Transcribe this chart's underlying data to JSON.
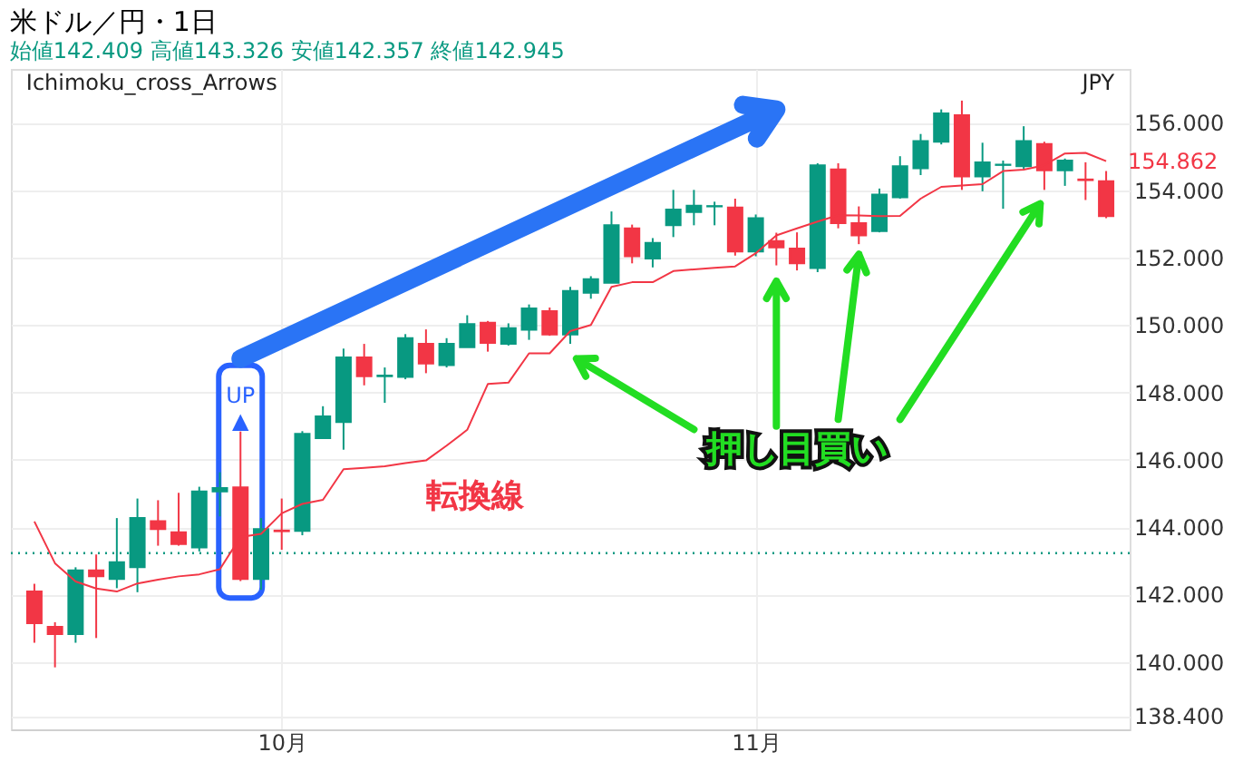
{
  "chart_data": {
    "type": "candlestick",
    "title": "米ドル／円・1日",
    "subtitle": "始値142.409 高値143.326 安値142.357 終値142.945",
    "categories": [
      null,
      null,
      null,
      null,
      null,
      null,
      null,
      null,
      null,
      null,
      null,
      null,
      "10月",
      null,
      null,
      null,
      null,
      null,
      null,
      null,
      null,
      null,
      null,
      null,
      null,
      null,
      null,
      null,
      null,
      null,
      null,
      null,
      null,
      null,
      null,
      "11月",
      null,
      null,
      null,
      null,
      null,
      null,
      null,
      null,
      null,
      null,
      null,
      null,
      null,
      null,
      null,
      null,
      null
    ],
    "ohlc": [
      [
        142.09,
        142.32,
        140.57,
        141.15
      ],
      [
        141.04,
        141.18,
        139.84,
        140.83
      ],
      [
        140.83,
        142.81,
        140.57,
        142.72
      ],
      [
        142.72,
        143.19,
        140.71,
        142.54
      ],
      [
        142.46,
        144.27,
        142.19,
        142.96
      ],
      [
        142.81,
        144.85,
        142.07,
        144.27
      ],
      [
        144.18,
        144.8,
        143.45,
        143.94
      ],
      [
        143.85,
        145.02,
        143.45,
        143.5
      ],
      [
        143.4,
        145.2,
        143.28,
        145.06
      ],
      [
        145.06,
        145.63,
        144.32,
        145.16
      ],
      [
        145.18,
        146.84,
        142.4,
        142.46
      ],
      [
        142.46,
        144.27,
        142.14,
        143.94
      ],
      [
        143.9,
        144.85,
        143.33,
        143.88
      ],
      [
        143.89,
        146.85,
        143.76,
        146.77
      ],
      [
        146.64,
        147.59,
        146.64,
        147.29
      ],
      [
        147.12,
        149.3,
        146.3,
        149.04
      ],
      [
        149.04,
        149.44,
        148.21,
        148.48
      ],
      [
        148.48,
        148.74,
        147.69,
        148.5
      ],
      [
        148.46,
        149.73,
        148.39,
        149.61
      ],
      [
        149.44,
        149.87,
        148.57,
        148.86
      ],
      [
        148.81,
        149.61,
        148.74,
        149.44
      ],
      [
        149.34,
        150.29,
        149.34,
        150.03
      ],
      [
        150.07,
        150.12,
        149.21,
        149.47
      ],
      [
        149.44,
        150.05,
        149.39,
        149.91
      ],
      [
        149.86,
        150.61,
        149.56,
        150.49
      ],
      [
        150.41,
        150.52,
        149.68,
        149.72
      ],
      [
        149.72,
        151.13,
        149.44,
        151.01
      ],
      [
        150.96,
        151.45,
        150.78,
        151.36
      ],
      [
        151.25,
        153.37,
        151.25,
        152.96
      ],
      [
        152.87,
        152.98,
        151.83,
        152.04
      ],
      [
        151.97,
        152.58,
        151.71,
        152.44
      ],
      [
        152.96,
        154.01,
        152.61,
        153.43
      ],
      [
        153.35,
        154.01,
        152.96,
        153.54
      ],
      [
        153.52,
        153.66,
        152.96,
        153.53
      ],
      [
        153.49,
        153.75,
        152.06,
        152.18
      ],
      [
        152.18,
        153.28,
        152.04,
        153.17
      ],
      [
        152.49,
        152.74,
        151.77,
        152.3
      ],
      [
        152.27,
        152.75,
        151.62,
        151.83
      ],
      [
        151.69,
        154.8,
        151.57,
        154.74
      ],
      [
        154.62,
        154.8,
        152.87,
        153.02
      ],
      [
        153.02,
        153.52,
        152.4,
        152.66
      ],
      [
        152.79,
        154.05,
        152.75,
        153.87
      ],
      [
        153.79,
        155.01,
        153.75,
        154.71
      ],
      [
        154.65,
        155.67,
        154.45,
        155.46
      ],
      [
        155.44,
        156.4,
        155.36,
        156.28
      ],
      [
        156.23,
        156.66,
        154.01,
        154.41
      ],
      [
        154.41,
        155.41,
        153.97,
        154.83
      ],
      [
        154.75,
        154.88,
        153.45,
        154.76
      ],
      [
        154.71,
        155.9,
        154.62,
        155.46
      ],
      [
        155.37,
        155.44,
        154.01,
        154.59
      ],
      [
        154.59,
        154.94,
        154.13,
        154.88
      ],
      [
        154.32,
        154.83,
        153.71,
        154.3
      ],
      [
        154.27,
        154.57,
        153.17,
        153.23
      ]
    ],
    "colors": [
      "#f23645",
      "#f23645",
      "#089981",
      "#f23645",
      "#089981",
      "#089981",
      "#f23645",
      "#f23645",
      "#089981",
      "#089981",
      "#f23645",
      "#089981",
      "#f23645",
      "#089981",
      "#089981",
      "#089981",
      "#f23645",
      "#089981",
      "#089981",
      "#f23645",
      "#089981",
      "#089981",
      "#f23645",
      "#089981",
      "#089981",
      "#f23645",
      "#089981",
      "#089981",
      "#089981",
      "#f23645",
      "#089981",
      "#089981",
      "#089981",
      "#089981",
      "#f23645",
      "#089981",
      "#f23645",
      "#f23645",
      "#089981",
      "#f23645",
      "#f23645",
      "#089981",
      "#089981",
      "#089981",
      "#089981",
      "#f23645",
      "#089981",
      "#089981",
      "#089981",
      "#f23645",
      "#089981",
      "#f23645",
      "#f23645"
    ],
    "series": [
      {
        "name": "転換線",
        "type": "line",
        "color": "#f23645",
        "values": [
          144.17,
          142.93,
          142.39,
          142.18,
          142.09,
          142.33,
          142.44,
          142.54,
          142.6,
          142.75,
          143.71,
          143.8,
          144.41,
          144.69,
          144.81,
          145.72,
          145.76,
          145.81,
          145.9,
          145.98,
          146.42,
          146.89,
          148.25,
          148.29,
          149.16,
          149.16,
          149.82,
          150.0,
          151.13,
          151.27,
          151.27,
          151.6,
          151.65,
          151.7,
          151.74,
          152.13,
          152.66,
          152.87,
          153.07,
          153.26,
          153.25,
          153.23,
          153.24,
          153.75,
          154.1,
          154.14,
          154.18,
          154.57,
          154.61,
          154.74,
          155.09,
          155.11,
          154.862
        ]
      }
    ],
    "ylim": [
      138.0,
      157.6
    ],
    "yticks": [
      {
        "value": 138.4,
        "label": "138.400"
      },
      {
        "value": 140,
        "label": "140.000"
      },
      {
        "value": 142,
        "label": "142.000"
      },
      {
        "value": 144,
        "label": "144.000"
      },
      {
        "value": 146,
        "label": "146.000"
      },
      {
        "value": 148,
        "label": "148.000"
      },
      {
        "value": 150,
        "label": "150.000"
      },
      {
        "value": 152,
        "label": "152.000"
      },
      {
        "value": 154,
        "label": "154.000"
      },
      {
        "value": 156,
        "label": "156.000"
      }
    ],
    "ref_lines": [
      {
        "axis": "y",
        "value": 143.23,
        "color": "#089981",
        "line_style": "dotted"
      }
    ],
    "annotations": [
      "Ichimoku_cross_Arrows",
      "JPY",
      "UP\n▲",
      "押し目買い",
      "154.862"
    ],
    "grid": true
  }
}
